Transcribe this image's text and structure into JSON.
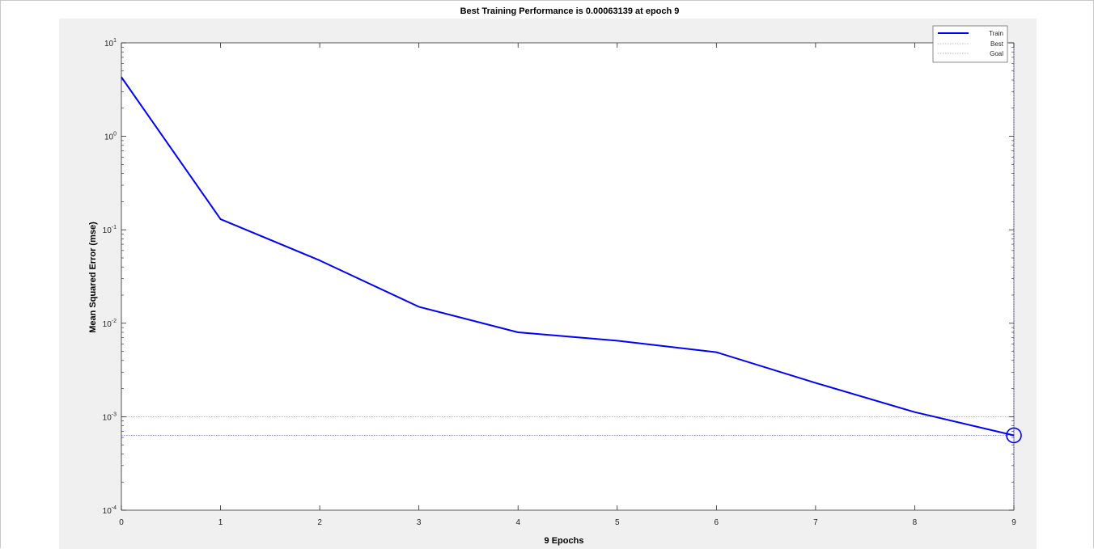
{
  "chart_data": {
    "type": "line",
    "title": "Best Training Performance is 0.00063139 at epoch 9",
    "xlabel": "9 Epochs",
    "ylabel": "Mean Squared Error  (mse)",
    "xlim": [
      0,
      9
    ],
    "ylim": [
      0.0001,
      10
    ],
    "yscale": "log",
    "x_ticks": [
      "0",
      "1",
      "2",
      "3",
      "4",
      "5",
      "6",
      "7",
      "8",
      "9"
    ],
    "y_ticks": [
      {
        "base": "10",
        "exp": "1"
      },
      {
        "base": "10",
        "exp": "0"
      },
      {
        "base": "10",
        "exp": "-1"
      },
      {
        "base": "10",
        "exp": "-2"
      },
      {
        "base": "10",
        "exp": "-3"
      },
      {
        "base": "10",
        "exp": "-4"
      }
    ],
    "y_tick_values": [
      10,
      1,
      0.1,
      0.01,
      0.001,
      0.0001
    ],
    "series": [
      {
        "name": "Train",
        "color": "#0000ff",
        "x": [
          0,
          1,
          2,
          3,
          4,
          5,
          6,
          7,
          8,
          9
        ],
        "y": [
          4.3,
          0.13,
          0.047,
          0.015,
          0.008,
          0.0065,
          0.0049,
          0.0023,
          0.00112,
          0.00063139
        ]
      }
    ],
    "best": {
      "name": "Best",
      "epoch": 9,
      "value": 0.00063139,
      "color": "#0000ff"
    },
    "goal": {
      "name": "Goal",
      "value": 0.001,
      "color": "#8a8aa0"
    },
    "legend": {
      "position": "top-right",
      "entries": [
        "Train",
        "Best",
        "Goal"
      ]
    },
    "grid": false
  }
}
